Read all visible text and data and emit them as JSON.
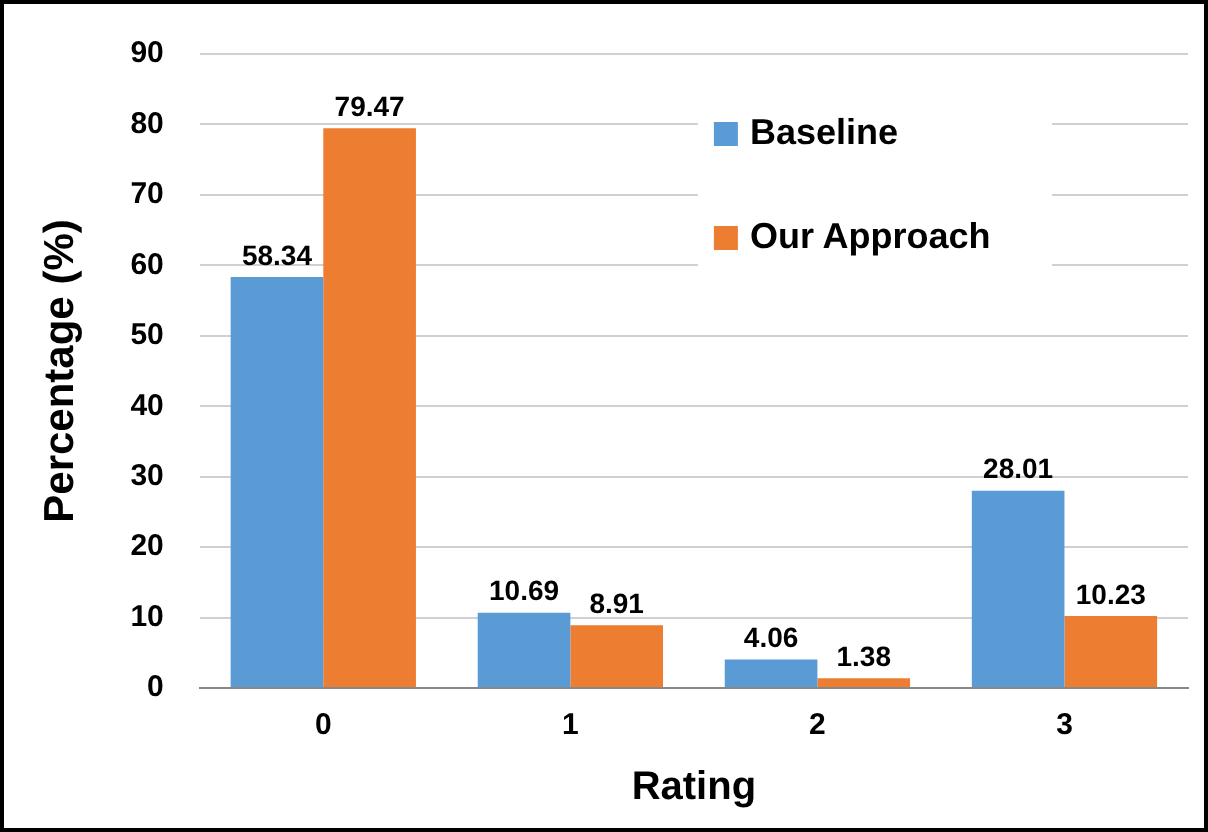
{
  "chart_data": {
    "type": "bar",
    "xlabel": "Rating",
    "ylabel": "Percentage (%)",
    "categories": [
      "0",
      "1",
      "2",
      "3"
    ],
    "series": [
      {
        "name": "Baseline",
        "color": "#5b9bd5",
        "values": [
          58.34,
          10.69,
          4.06,
          28.01
        ]
      },
      {
        "name": "Our Approach",
        "color": "#ed7d31",
        "values": [
          79.47,
          8.91,
          1.38,
          10.23
        ]
      }
    ],
    "ylim": [
      0,
      90
    ],
    "yticks": [
      0,
      10,
      20,
      30,
      40,
      50,
      60,
      70,
      80,
      90
    ],
    "grid": "y",
    "legend": "top",
    "data_labels": true
  }
}
